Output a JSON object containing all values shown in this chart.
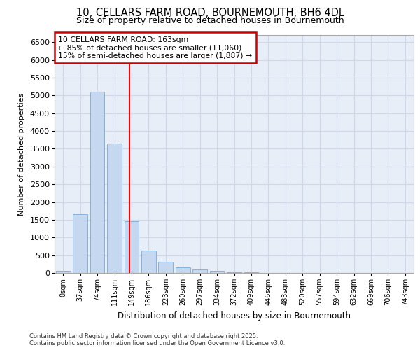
{
  "title_line1": "10, CELLARS FARM ROAD, BOURNEMOUTH, BH6 4DL",
  "title_line2": "Size of property relative to detached houses in Bournemouth",
  "xlabel": "Distribution of detached houses by size in Bournemouth",
  "ylabel": "Number of detached properties",
  "categories": [
    "0sqm",
    "37sqm",
    "74sqm",
    "111sqm",
    "149sqm",
    "186sqm",
    "223sqm",
    "260sqm",
    "297sqm",
    "334sqm",
    "372sqm",
    "409sqm",
    "446sqm",
    "483sqm",
    "520sqm",
    "557sqm",
    "594sqm",
    "632sqm",
    "669sqm",
    "706sqm",
    "743sqm"
  ],
  "values": [
    50,
    1650,
    5100,
    3650,
    1450,
    625,
    325,
    160,
    100,
    50,
    25,
    15,
    5,
    3,
    2,
    1,
    0,
    0,
    0,
    0,
    0
  ],
  "bar_color": "#c5d8f0",
  "bar_edge_color": "#7aaad4",
  "bar_width": 0.85,
  "red_line_x": 3.878,
  "annotation_text": "10 CELLARS FARM ROAD: 163sqm\n← 85% of detached houses are smaller (11,060)\n15% of semi-detached houses are larger (1,887) →",
  "annotation_box_color": "#ffffff",
  "annotation_box_edge": "#cc0000",
  "ylim": [
    0,
    6700
  ],
  "yticks": [
    0,
    500,
    1000,
    1500,
    2000,
    2500,
    3000,
    3500,
    4000,
    4500,
    5000,
    5500,
    6000,
    6500
  ],
  "grid_color": "#d0d8e8",
  "background_color": "#e8eef8",
  "footer_line1": "Contains HM Land Registry data © Crown copyright and database right 2025.",
  "footer_line2": "Contains public sector information licensed under the Open Government Licence v3.0."
}
